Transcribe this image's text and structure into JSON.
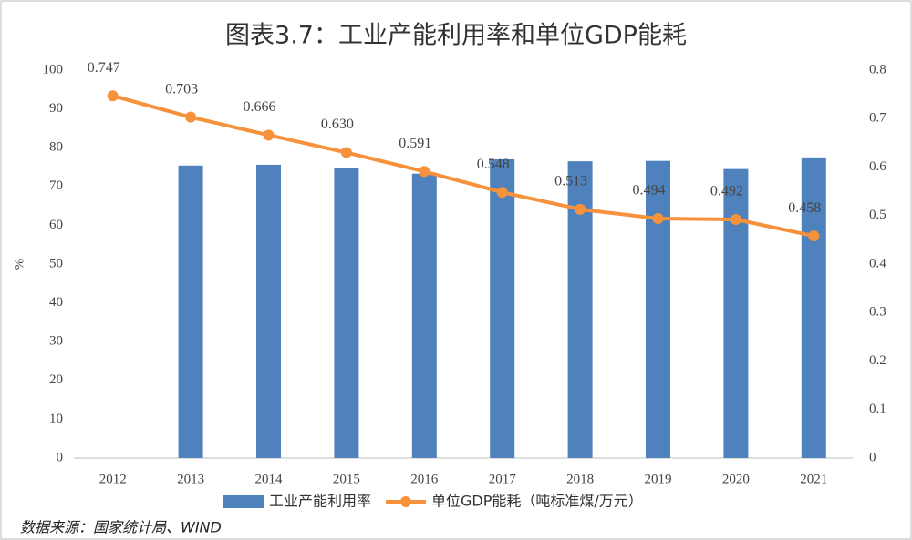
{
  "chart_data": {
    "type": "bar",
    "title": "图表3.7：工业产能利用率和单位GDP能耗",
    "y_label": "%",
    "source": "数据来源：国家统计局、WIND",
    "categories": [
      "2012",
      "2013",
      "2014",
      "2015",
      "2016",
      "2017",
      "2018",
      "2019",
      "2020",
      "2021"
    ],
    "series": [
      {
        "name": "工业产能利用率",
        "color": "#4f81bd",
        "values": [
          null,
          75.4,
          75.6,
          74.8,
          73.3,
          77.0,
          76.5,
          76.6,
          74.5,
          77.5
        ]
      },
      {
        "name": "单位GDP能耗（吨标准煤/万元）",
        "color": "#f7923c",
        "type": "line",
        "axis": "y2",
        "values": [
          0.747,
          0.703,
          0.666,
          0.63,
          0.591,
          0.548,
          0.513,
          0.494,
          0.492,
          0.458
        ],
        "value_labels": [
          "0.747",
          "0.703",
          "0.666",
          "0.630",
          "0.591",
          "0.548",
          "0.513",
          "0.494",
          "0.492",
          "0.458"
        ]
      }
    ],
    "ylim": [
      0,
      100
    ],
    "yticks": [
      0,
      10,
      20,
      30,
      40,
      50,
      60,
      70,
      80,
      90,
      100
    ],
    "y2lim": [
      0,
      0.8
    ],
    "y2ticks": [
      0,
      0.1,
      0.2,
      0.3,
      0.4,
      0.5,
      0.6,
      0.7,
      0.8
    ],
    "grid": false
  }
}
